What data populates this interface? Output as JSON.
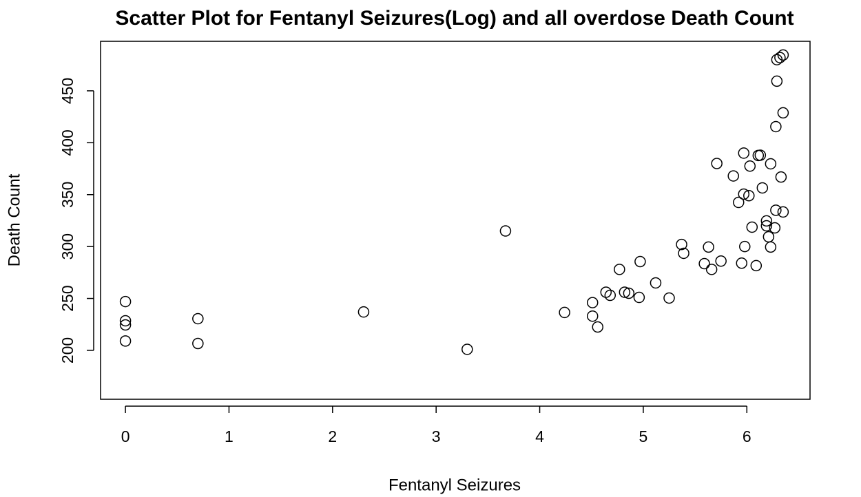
{
  "chart_data": {
    "type": "scatter",
    "title": "Scatter Plot for Fentanyl Seizures(Log) and all overdose Death Count",
    "x_label": "Fentanyl Seizures",
    "y_label": "Death Count",
    "xlim": [
      -0.24,
      6.61
    ],
    "ylim": [
      152.9,
      497.7
    ],
    "xticks": [
      0,
      1,
      2,
      3,
      4,
      5,
      6
    ],
    "yticks": [
      200,
      250,
      300,
      350,
      400,
      450
    ],
    "color": "#000000",
    "x": [
      0,
      0,
      0,
      0,
      0.7,
      0.7,
      2.3,
      3.3,
      3.67,
      4.24,
      4.51,
      4.51,
      4.56,
      4.64,
      4.68,
      4.77,
      4.82,
      4.86,
      4.96,
      4.97,
      5.12,
      5.25,
      5.37,
      5.39,
      5.59,
      5.63,
      5.66,
      5.71,
      5.75,
      5.87,
      5.92,
      5.95,
      5.97,
      5.98,
      5.97,
      6.02,
      6.03,
      6.05,
      6.09,
      6.11,
      6.13,
      6.15,
      6.19,
      6.19,
      6.21,
      6.23,
      6.23,
      6.27,
      6.28,
      6.28,
      6.29,
      6.29,
      6.32,
      6.33,
      6.35,
      6.35,
      6.35
    ],
    "y": [
      247,
      228.5,
      224.5,
      209,
      230.5,
      206.6,
      237,
      201,
      315,
      236.5,
      246,
      233,
      222.5,
      256,
      253,
      278,
      256,
      255,
      251,
      285.5,
      265,
      250.4,
      302,
      293.5,
      283.5,
      299.5,
      278,
      380,
      286,
      368,
      342.5,
      284,
      390,
      300,
      350.5,
      349,
      377.5,
      318.7,
      281.6,
      387.7,
      388,
      356.5,
      320,
      324.7,
      309.4,
      379.7,
      299.5,
      318,
      335,
      415.5,
      459.3,
      480,
      482,
      367,
      428.8,
      484.5,
      333.3
    ]
  }
}
